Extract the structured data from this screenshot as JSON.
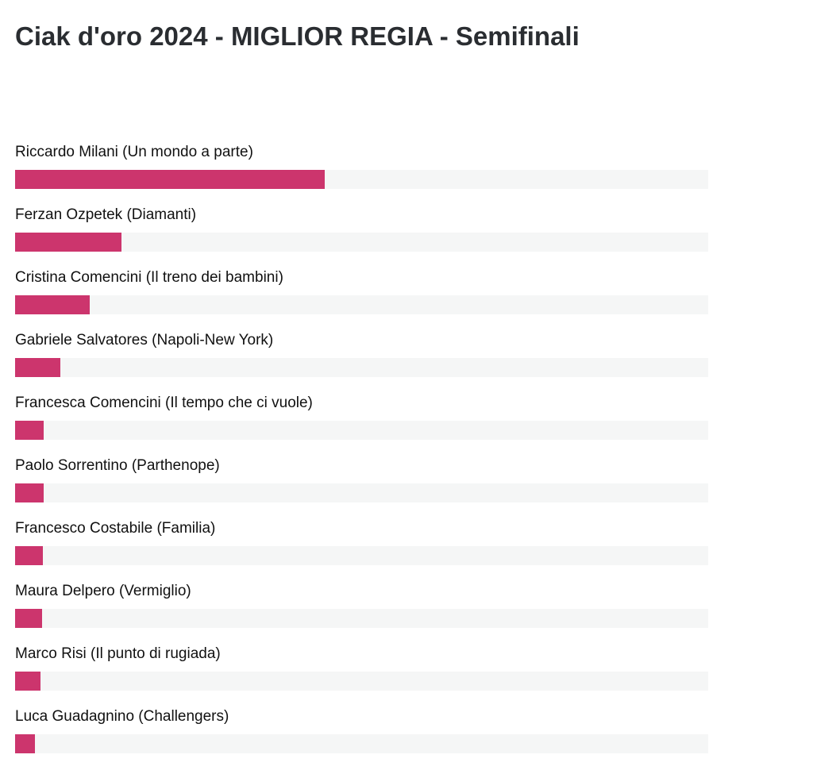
{
  "header": {
    "title": "Ciak d'oro 2024 - MIGLIOR REGIA - Semifinali"
  },
  "colors": {
    "bar_fill": "#cc356d",
    "bar_track": "#f5f6f6",
    "title": "#2a2d31"
  },
  "poll": {
    "options": [
      {
        "label": "Riccardo Milani (Un mondo a parte)",
        "fraction": 0.447
      },
      {
        "label": "Ferzan Ozpetek (Diamanti)",
        "fraction": 0.154
      },
      {
        "label": "Cristina Comencini (Il treno dei bambini)",
        "fraction": 0.108
      },
      {
        "label": "Gabriele Salvatores (Napoli-New York)",
        "fraction": 0.065
      },
      {
        "label": "Francesca Comencini (Il tempo che ci vuole)",
        "fraction": 0.041
      },
      {
        "label": "Paolo Sorrentino (Parthenope)",
        "fraction": 0.041
      },
      {
        "label": "Francesco Costabile (Familia)",
        "fraction": 0.04
      },
      {
        "label": "Maura Delpero (Vermiglio)",
        "fraction": 0.039
      },
      {
        "label": "Marco Risi (Il punto di rugiada)",
        "fraction": 0.037
      },
      {
        "label": "Luca Guadagnino (Challengers)",
        "fraction": 0.029
      }
    ]
  }
}
